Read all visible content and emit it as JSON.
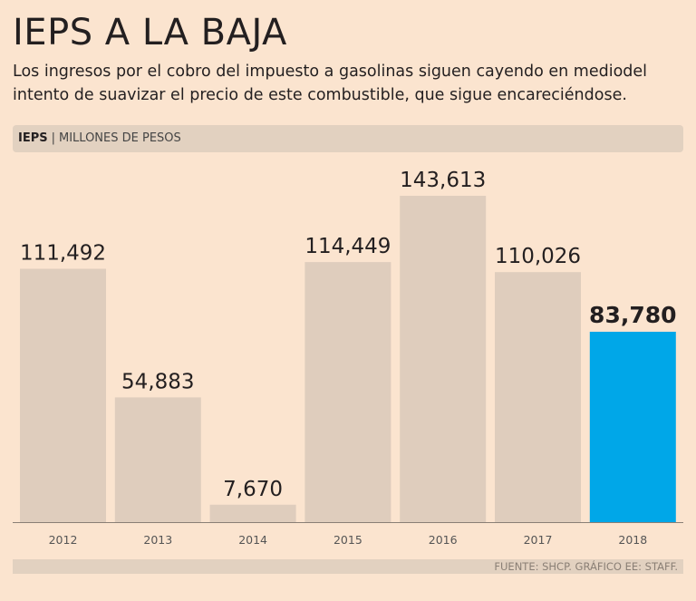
{
  "title": "IEPS A LA BAJA",
  "subtitle": "Los ingresos por el cobro del impuesto a gasolinas siguen cayendo en mediodel intento de suavizar el precio de este combustible, que sigue encareciéndose.",
  "label_band": {
    "bold": "IEPS",
    "separator": "|",
    "text": "MILLONES DE PESOS"
  },
  "source": "FUENTE: SHCP. GRÁFICO EE: STAFF.",
  "colors": {
    "bar": "#dfcdbd",
    "highlight": "#00a7e8",
    "axis": "#8a7f75"
  },
  "chart_data": {
    "type": "bar",
    "title": "IEPS A LA BAJA",
    "ylabel": "MILLONES DE PESOS",
    "xlabel": "",
    "categories": [
      "2012",
      "2013",
      "2014",
      "2015",
      "2016",
      "2017",
      "2018"
    ],
    "values": [
      111492,
      54883,
      7670,
      114449,
      143613,
      110026,
      83780
    ],
    "value_labels": [
      "111,492",
      "54,883",
      "7,670",
      "114,449",
      "143,613",
      "110,026",
      "83,780"
    ],
    "highlight_index": 6,
    "ylim": [
      0,
      143613
    ],
    "grid": false
  }
}
